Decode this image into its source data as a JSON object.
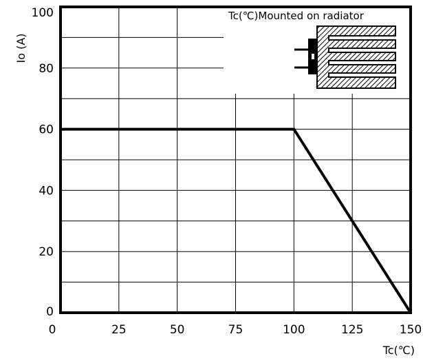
{
  "chart_data": {
    "type": "line",
    "title": "",
    "xlabel": "Tc(℃)",
    "ylabel": "Io (A)",
    "xlim": [
      0,
      150
    ],
    "ylim": [
      0,
      100
    ],
    "x_ticks": [
      0,
      25,
      50,
      75,
      100,
      125,
      150
    ],
    "y_ticks": [
      0,
      20,
      40,
      60,
      80,
      100
    ],
    "grid": true,
    "series": [
      {
        "x": [
          0,
          100,
          150
        ],
        "y": [
          60,
          60,
          0
        ]
      }
    ],
    "annotation": "Tc(℃)Mounted on radiator",
    "inset_icon": "heatsink-radiator-icon",
    "colors": {
      "line": "#000000",
      "grid": "#000000",
      "background": "#ffffff"
    }
  }
}
